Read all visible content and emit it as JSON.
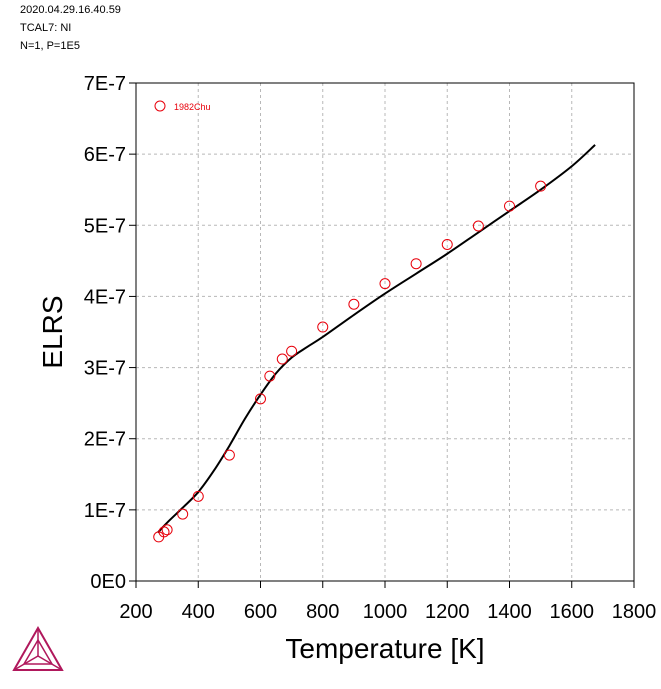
{
  "header": {
    "line1": "2020.04.29.16.40.59",
    "line2": "TCAL7: NI",
    "line3": "N=1, P=1E5"
  },
  "chart_data": {
    "type": "line",
    "xlabel": "Temperature [K]",
    "ylabel": "ELRS",
    "xlim": [
      200,
      1800
    ],
    "ylim": [
      0,
      7e-07
    ],
    "xticks": [
      200,
      400,
      600,
      800,
      1000,
      1200,
      1400,
      1600,
      1800
    ],
    "xtick_labels": [
      "200",
      "400",
      "600",
      "800",
      "1000",
      "1200",
      "1400",
      "1600",
      "1800"
    ],
    "yticks": [
      0,
      1e-07,
      2e-07,
      3e-07,
      4e-07,
      5e-07,
      6e-07,
      7e-07
    ],
    "ytick_labels": [
      "0E0",
      "1E-7",
      "2E-7",
      "3E-7",
      "4E-7",
      "5E-7",
      "6E-7",
      "7E-7"
    ],
    "grid": true,
    "legend_placement": "top-left",
    "series": [
      {
        "type": "line",
        "color": "#000000",
        "x": [
          270,
          300,
          350,
          400,
          450,
          500,
          550,
          600,
          650,
          700,
          750,
          800,
          900,
          1000,
          1100,
          1200,
          1300,
          1400,
          1500,
          1600,
          1675
        ],
        "y": [
          6.8e-08,
          8.2e-08,
          1.03e-07,
          1.25e-07,
          1.55e-07,
          1.9e-07,
          2.28e-07,
          2.62e-07,
          2.92e-07,
          3.14e-07,
          3.29e-07,
          3.43e-07,
          3.74e-07,
          4.04e-07,
          4.32e-07,
          4.6e-07,
          4.9e-07,
          5.2e-07,
          5.5e-07,
          5.83e-07,
          6.13e-07
        ]
      },
      {
        "type": "scatter",
        "name": "1982Chu",
        "color": "#e8000b",
        "x": [
          273,
          290,
          300,
          350,
          400,
          500,
          600,
          630,
          670,
          700,
          800,
          900,
          1000,
          1100,
          1200,
          1300,
          1400,
          1500
        ],
        "y": [
          6.2e-08,
          6.9e-08,
          7.2e-08,
          9.4e-08,
          1.19e-07,
          1.77e-07,
          2.56e-07,
          2.88e-07,
          3.12e-07,
          3.23e-07,
          3.57e-07,
          3.89e-07,
          4.18e-07,
          4.46e-07,
          4.73e-07,
          4.99e-07,
          5.27e-07,
          5.55e-07
        ]
      }
    ]
  }
}
